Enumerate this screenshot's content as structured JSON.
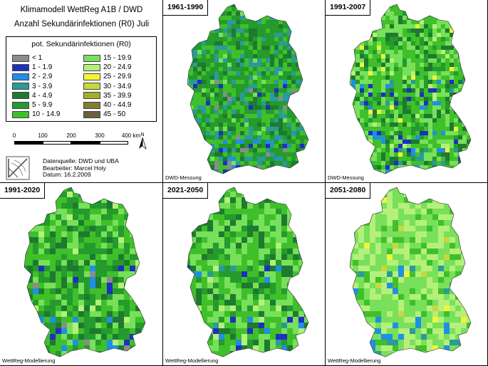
{
  "header": {
    "title_line1": "Klimamodell WettReg A1B / DWD",
    "title_line2": "Anzahl Sekundärinfektionen (R0) Juli"
  },
  "legend": {
    "title": "pot. Sekundärinfektionen (R0)",
    "classes": [
      {
        "label": "< 1",
        "color": "#8c8c8c"
      },
      {
        "label": "1 - 1.9",
        "color": "#1f2fbf"
      },
      {
        "label": "2 - 2.9",
        "color": "#1f8fe6"
      },
      {
        "label": "3 - 3.9",
        "color": "#2b9a9a"
      },
      {
        "label": "4 - 4.9",
        "color": "#1e7a30"
      },
      {
        "label": "5 - 9.9",
        "color": "#249b2c"
      },
      {
        "label": "10 - 14.9",
        "color": "#3fc02a"
      },
      {
        "label": "15 - 19.9",
        "color": "#78e05a"
      },
      {
        "label": "20 - 24.9",
        "color": "#b4f07a"
      },
      {
        "label": "25 - 29.9",
        "color": "#f0f53a"
      },
      {
        "label": "30 - 34.9",
        "color": "#c8d640"
      },
      {
        "label": "35 - 39.9",
        "color": "#a3ad2f"
      },
      {
        "label": "40 - 44.9",
        "color": "#817f2e"
      },
      {
        "label": "45 - 50",
        "color": "#6b5f3f"
      }
    ]
  },
  "scale": {
    "ticks": [
      "0",
      "100",
      "200",
      "300",
      "400 km"
    ],
    "north_label": "N"
  },
  "credits": {
    "line1": "Datenquelle: DWD und UBA",
    "line2": "Bearbeiter: Marcel Holy",
    "line3": "Datum: 16.2.2009"
  },
  "panels": [
    {
      "period": "1961-1990",
      "source": "DWD-Messung"
    },
    {
      "period": "1991-2007",
      "source": "DWD-Messung"
    },
    {
      "period": "1991-2020",
      "source": "WettReg-Modellierung"
    },
    {
      "period": "2021-2050",
      "source": "WettReg-Modellierung"
    },
    {
      "period": "2051-2080",
      "source": "WettReg-Modellierung"
    }
  ]
}
